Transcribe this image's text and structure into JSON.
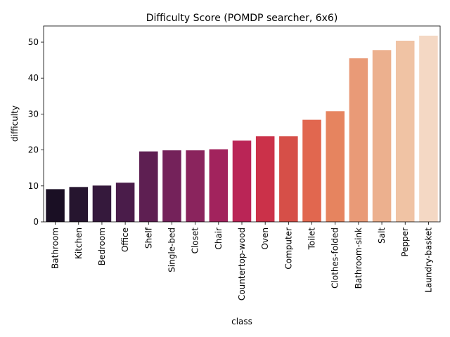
{
  "chart_data": {
    "type": "bar",
    "title": "Difficulty Score (POMDP searcher, 6x6)",
    "xlabel": "class",
    "ylabel": "difficulty",
    "ylim": [
      0,
      54.5
    ],
    "yticks": [
      0,
      10,
      20,
      30,
      40,
      50
    ],
    "grid": false,
    "categories": [
      "Bathroom",
      "Kitchen",
      "Bedroom",
      "Office",
      "Shelf",
      "Single-bed",
      "Closet",
      "Chair",
      "Countertop-wood",
      "Oven",
      "Computer",
      "Toilet",
      "Clothes-folded",
      "Bathroom-sink",
      "Salt",
      "Pepper",
      "Laundry-basket"
    ],
    "values": [
      9.1,
      9.7,
      10.1,
      10.9,
      19.6,
      19.9,
      19.9,
      20.2,
      22.6,
      23.8,
      23.8,
      28.4,
      30.8,
      45.5,
      47.8,
      50.4,
      51.8
    ],
    "colors": [
      "#1a0f24",
      "#26152f",
      "#35193c",
      "#4a1c4a",
      "#5e1f52",
      "#74225a",
      "#8a245d",
      "#a2235d",
      "#ba2556",
      "#cb3149",
      "#d64f48",
      "#e1674f",
      "#e6845f",
      "#e99a77",
      "#ecb08e",
      "#f0c3a4",
      "#f4d8c4"
    ]
  }
}
